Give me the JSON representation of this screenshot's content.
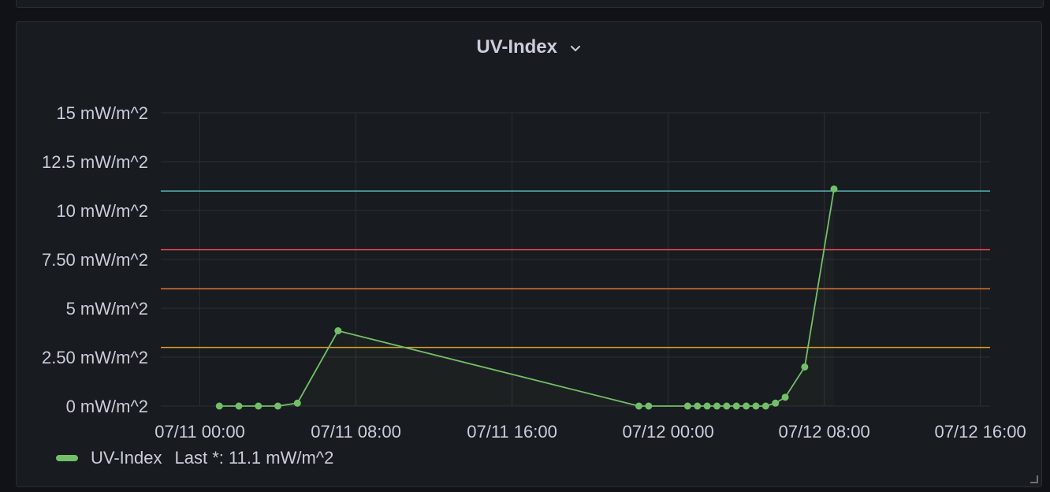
{
  "panel": {
    "title": "UV-Index"
  },
  "legend": {
    "series_name": "UV-Index",
    "last_label": "Last *: 11.1 mW/m^2"
  },
  "colors": {
    "series": "#73bf69",
    "threshold_11": "#5bbfbf",
    "threshold_8": "#e0474f",
    "threshold_6": "#e0752d",
    "threshold_3": "#d9a22a",
    "grid": "#2c3035",
    "text": "#ccccdc"
  },
  "chart_data": {
    "type": "line",
    "title": "UV-Index",
    "xlabel": "",
    "ylabel": "",
    "ylim": [
      0,
      15
    ],
    "xlim": [
      "07/10 22:00",
      "07/12 16:30"
    ],
    "yticks": [
      {
        "value": 0,
        "label": "0 mW/m^2"
      },
      {
        "value": 2.5,
        "label": "2.50 mW/m^2"
      },
      {
        "value": 5,
        "label": "5 mW/m^2"
      },
      {
        "value": 7.5,
        "label": "7.50 mW/m^2"
      },
      {
        "value": 10,
        "label": "10 mW/m^2"
      },
      {
        "value": 12.5,
        "label": "12.5 mW/m^2"
      },
      {
        "value": 15,
        "label": "15 mW/m^2"
      }
    ],
    "xticks": [
      {
        "value": "07/11 00:00",
        "label": "07/11 00:00"
      },
      {
        "value": "07/11 08:00",
        "label": "07/11 08:00"
      },
      {
        "value": "07/11 16:00",
        "label": "07/11 16:00"
      },
      {
        "value": "07/12 00:00",
        "label": "07/12 00:00"
      },
      {
        "value": "07/12 08:00",
        "label": "07/12 08:00"
      },
      {
        "value": "07/12 16:00",
        "label": "07/12 16:00"
      }
    ],
    "thresholds": [
      {
        "value": 11,
        "color": "#5bbfbf"
      },
      {
        "value": 8,
        "color": "#e0474f"
      },
      {
        "value": 6,
        "color": "#e0752d"
      },
      {
        "value": 3,
        "color": "#d9a22a"
      }
    ],
    "grid": true,
    "legend_position": "bottom-left",
    "series": [
      {
        "name": "UV-Index",
        "color": "#73bf69",
        "points": [
          {
            "x": "07/11 01:00",
            "y": 0
          },
          {
            "x": "07/11 02:00",
            "y": 0
          },
          {
            "x": "07/11 03:00",
            "y": 0
          },
          {
            "x": "07/11 04:00",
            "y": 0
          },
          {
            "x": "07/11 05:00",
            "y": 0.15
          },
          {
            "x": "07/11 07:05",
            "y": 3.85
          },
          {
            "x": "07/11 22:30",
            "y": 0
          },
          {
            "x": "07/11 23:00",
            "y": 0
          },
          {
            "x": "07/12 01:00",
            "y": 0
          },
          {
            "x": "07/12 01:30",
            "y": 0
          },
          {
            "x": "07/12 02:00",
            "y": 0
          },
          {
            "x": "07/12 02:30",
            "y": 0
          },
          {
            "x": "07/12 03:00",
            "y": 0
          },
          {
            "x": "07/12 03:30",
            "y": 0
          },
          {
            "x": "07/12 04:00",
            "y": 0
          },
          {
            "x": "07/12 04:30",
            "y": 0
          },
          {
            "x": "07/12 05:00",
            "y": 0
          },
          {
            "x": "07/12 05:30",
            "y": 0.15
          },
          {
            "x": "07/12 06:00",
            "y": 0.45
          },
          {
            "x": "07/12 07:00",
            "y": 2.0
          },
          {
            "x": "07/12 08:30",
            "y": 11.1
          }
        ]
      }
    ]
  }
}
